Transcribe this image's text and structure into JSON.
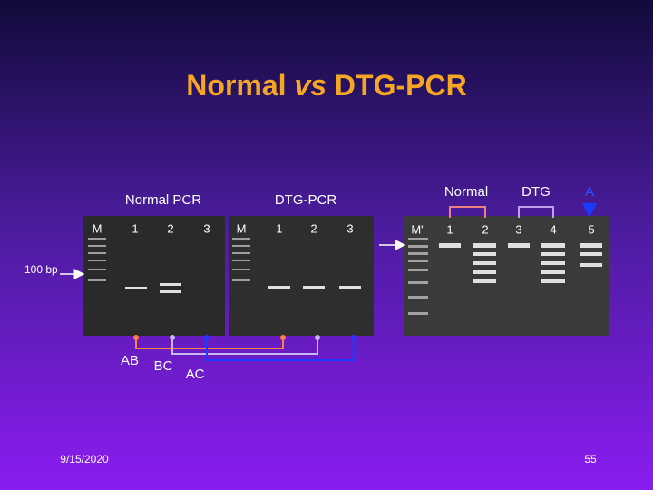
{
  "title": {
    "part1": "Normal ",
    "part2": "vs",
    "part3": " DTG-PCR"
  },
  "gel_headers": {
    "normal_pcr": "Normal PCR",
    "dtg_pcr": "DTG-PCR",
    "normal": "Normal",
    "dtg": "DTG",
    "a": "A"
  },
  "lanes": {
    "gel1": [
      "M",
      "1",
      "2",
      "3"
    ],
    "gel2": [
      "M",
      "1",
      "2",
      "3"
    ],
    "gel3": [
      "M'",
      "1",
      "2",
      "3",
      "4",
      "5"
    ]
  },
  "marker_label": "100 bp",
  "pairs": [
    "AB",
    "BC",
    "AC"
  ],
  "footer": {
    "date": "9/15/2020",
    "page": "55"
  }
}
